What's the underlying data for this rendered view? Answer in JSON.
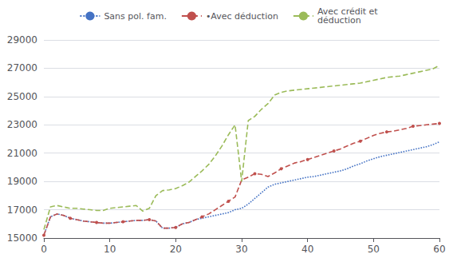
{
  "chart_data": {
    "type": "line",
    "x": [
      0,
      1,
      2,
      3,
      4,
      5,
      6,
      7,
      8,
      9,
      10,
      11,
      12,
      13,
      14,
      15,
      16,
      17,
      18,
      19,
      20,
      21,
      22,
      23,
      24,
      25,
      26,
      27,
      28,
      29,
      30,
      31,
      32,
      33,
      34,
      35,
      36,
      37,
      38,
      39,
      40,
      41,
      42,
      43,
      44,
      45,
      46,
      47,
      48,
      49,
      50,
      51,
      52,
      53,
      54,
      55,
      56,
      57,
      58,
      59,
      60
    ],
    "series": [
      {
        "name": "Sans pol. fam.",
        "color": "#4472C4",
        "line_style": "dotted",
        "values": [
          15200,
          16500,
          16700,
          16600,
          16400,
          16300,
          16200,
          16150,
          16100,
          16050,
          16050,
          16100,
          16150,
          16200,
          16250,
          16250,
          16300,
          16200,
          15700,
          15700,
          15750,
          16000,
          16100,
          16300,
          16400,
          16500,
          16600,
          16700,
          16800,
          17000,
          17100,
          17400,
          17800,
          18200,
          18600,
          18800,
          18900,
          19000,
          19100,
          19200,
          19300,
          19350,
          19450,
          19550,
          19650,
          19750,
          19900,
          20100,
          20250,
          20450,
          20600,
          20750,
          20850,
          20950,
          21050,
          21150,
          21250,
          21350,
          21450,
          21600,
          21800
        ]
      },
      {
        "name": "•Avec déduction",
        "color": "#C0504D",
        "line_style": "dashed",
        "marker": "circle",
        "values": [
          15200,
          16500,
          16700,
          16600,
          16400,
          16300,
          16200,
          16150,
          16100,
          16050,
          16050,
          16100,
          16150,
          16200,
          16250,
          16250,
          16300,
          16200,
          15700,
          15700,
          15750,
          16000,
          16100,
          16300,
          16500,
          16700,
          17000,
          17300,
          17600,
          17900,
          19100,
          19300,
          19550,
          19500,
          19350,
          19600,
          19900,
          20100,
          20300,
          20400,
          20550,
          20700,
          20850,
          21000,
          21150,
          21300,
          21500,
          21700,
          21850,
          22050,
          22250,
          22400,
          22500,
          22550,
          22650,
          22750,
          22900,
          22950,
          23000,
          23050,
          23100
        ]
      },
      {
        "name": "Avec crédit et\ndéduction",
        "color": "#9BBB59",
        "line_style": "dashed",
        "values": [
          15600,
          17200,
          17300,
          17200,
          17100,
          17100,
          17050,
          17000,
          16950,
          16950,
          17100,
          17150,
          17200,
          17250,
          17300,
          16900,
          17100,
          18000,
          18350,
          18400,
          18500,
          18700,
          18950,
          19350,
          19750,
          20200,
          20800,
          21500,
          22300,
          23000,
          19000,
          23300,
          23600,
          24100,
          24500,
          25100,
          25300,
          25400,
          25450,
          25500,
          25550,
          25600,
          25650,
          25700,
          25750,
          25800,
          25850,
          25900,
          25950,
          26050,
          26150,
          26250,
          26350,
          26400,
          26450,
          26550,
          26650,
          26750,
          26850,
          26950,
          27200
        ]
      }
    ],
    "xlim": [
      0,
      60
    ],
    "xticks": [
      0,
      10,
      20,
      30,
      40,
      50,
      60
    ],
    "ylim": [
      15000,
      29000
    ],
    "yticks": [
      15000,
      17000,
      19000,
      21000,
      23000,
      25000,
      27000,
      29000
    ],
    "grid": true,
    "legend": "top"
  }
}
